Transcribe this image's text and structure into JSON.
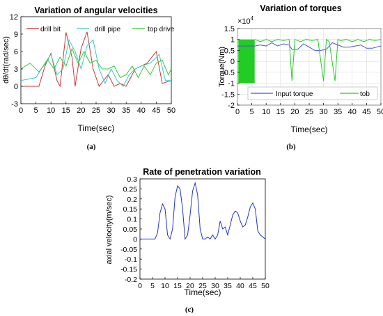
{
  "chart_data": [
    {
      "type": "line",
      "caption": "(a)",
      "title": "Variation of angular velocities",
      "xlabel": "Time(sec)",
      "ylabel": "dθ/dt(rad/sec)",
      "xlim": [
        0,
        50
      ],
      "ylim": [
        -3,
        12
      ],
      "xticks": [
        0,
        5,
        10,
        15,
        20,
        25,
        30,
        35,
        40,
        45,
        50
      ],
      "yticks": [
        -3,
        0,
        3,
        6,
        9,
        12
      ],
      "legend_position": "top",
      "colors": {
        "drill_bit": "#cc3333",
        "drill_pipe": "#33cccc",
        "top_drive": "#33cc33"
      },
      "series": [
        {
          "name": "drill bit",
          "x": [
            0,
            6,
            8,
            10,
            12,
            13,
            15,
            17,
            18,
            20,
            22,
            24,
            26,
            29,
            31,
            33,
            35,
            38,
            42,
            45,
            47,
            50
          ],
          "y": [
            0,
            0,
            3.5,
            5.7,
            1,
            0,
            9.3,
            5,
            0,
            6.5,
            9.4,
            3,
            0,
            2,
            0,
            0.5,
            0,
            3,
            4,
            6,
            0.5,
            1
          ]
        },
        {
          "name": "drill pipe",
          "x": [
            0,
            5,
            8,
            10,
            12,
            14,
            16,
            18,
            20,
            22,
            24,
            26,
            28,
            30,
            32,
            34,
            36,
            38,
            40,
            43,
            46,
            48,
            50
          ],
          "y": [
            1,
            1.5,
            4,
            5.5,
            2,
            3,
            8,
            6,
            3,
            7,
            8,
            3,
            0.5,
            3,
            1,
            0,
            2,
            3,
            3.5,
            4,
            5.5,
            1,
            1
          ]
        },
        {
          "name": "top drive",
          "x": [
            0,
            3,
            6,
            9,
            11,
            13,
            15,
            17,
            19,
            21,
            23,
            25,
            27,
            29,
            31,
            33,
            35,
            37,
            39,
            41,
            43,
            45,
            47,
            49,
            50
          ],
          "y": [
            3,
            4,
            2.5,
            4.5,
            3,
            5,
            3.5,
            6.5,
            4,
            6,
            4,
            4.5,
            3,
            3,
            3.5,
            1.5,
            2,
            3.5,
            1.5,
            3.5,
            2,
            4,
            4.5,
            2,
            3
          ]
        }
      ]
    },
    {
      "type": "line",
      "caption": "(b)",
      "title": "Variation of torques",
      "xlabel": "Time(sec)",
      "ylabel": "Torque(Nm)",
      "scale_label": "×10",
      "scale_exp": "4",
      "xlim": [
        0,
        50
      ],
      "ylim": [
        -2,
        1.5
      ],
      "xticks": [
        0,
        5,
        10,
        15,
        20,
        25,
        30,
        35,
        40,
        45,
        50
      ],
      "yticks": [
        -2,
        -1.5,
        -1,
        -0.5,
        0,
        0.5,
        1,
        1.5
      ],
      "grid": true,
      "legend_position": "bottom",
      "colors": {
        "input": "#4455dd",
        "tob": "#22cc22"
      },
      "series": [
        {
          "name": "Input torque",
          "x": [
            0,
            6,
            8,
            10,
            12,
            14,
            16,
            18,
            19,
            21,
            23,
            25,
            27,
            29,
            31,
            33,
            35,
            37,
            39,
            41,
            43,
            45,
            47,
            50
          ],
          "y": [
            0.7,
            0.7,
            0.75,
            0.7,
            0.85,
            0.7,
            0.8,
            0.75,
            0.55,
            0.55,
            0.8,
            0.65,
            0.5,
            0.5,
            0.55,
            0.85,
            0.75,
            0.65,
            0.65,
            0.7,
            0.75,
            0.6,
            0.6,
            0.7
          ]
        },
        {
          "name": "tob",
          "x": [
            6,
            8,
            10,
            12,
            14,
            16,
            18,
            19,
            20,
            22,
            24,
            26,
            28,
            30,
            31,
            32,
            34,
            35,
            36,
            38,
            40,
            42,
            44,
            46,
            48,
            50
          ],
          "y": [
            1,
            0.9,
            1,
            0.9,
            1,
            0.95,
            1,
            -0.9,
            1,
            0.9,
            1,
            0.95,
            1,
            -0.9,
            1,
            0.9,
            -0.9,
            1,
            0.95,
            1,
            0.9,
            1,
            0.9,
            1,
            0.95,
            1
          ]
        }
      ]
    },
    {
      "type": "line",
      "caption": "(c)",
      "title": "Rate of penetration variation",
      "xlabel": "Time(sec)",
      "ylabel": "axial velocity(m/sec)",
      "xlim": [
        0,
        50
      ],
      "ylim": [
        -0.2,
        0.3
      ],
      "xticks": [
        0,
        5,
        10,
        15,
        20,
        25,
        30,
        35,
        40,
        45,
        50
      ],
      "yticks": [
        -0.2,
        -0.15,
        -0.1,
        -0.05,
        0,
        0.05,
        0.1,
        0.15,
        0.2,
        0.25,
        0.3
      ],
      "colors": {
        "rop": "#2233cc"
      },
      "series": [
        {
          "x": [
            0,
            5,
            6,
            7,
            8,
            9,
            10,
            11,
            12,
            13,
            14,
            15,
            16,
            17,
            18,
            19,
            20,
            21,
            22,
            23,
            24,
            25,
            26,
            27,
            28,
            29,
            30,
            31,
            32,
            33,
            34,
            35,
            36,
            37,
            38,
            39,
            40,
            41,
            42,
            43,
            44,
            45,
            46,
            47,
            48,
            49,
            50
          ],
          "y": [
            0,
            0,
            0,
            0.03,
            0.13,
            0.175,
            0.15,
            0.02,
            0,
            0.05,
            0.21,
            0.265,
            0.25,
            0.15,
            0,
            0.02,
            0.12,
            0.24,
            0.28,
            0.22,
            0.05,
            0,
            0,
            0.01,
            0,
            0.02,
            0,
            0.02,
            0.09,
            0.05,
            0.06,
            0.02,
            0.07,
            0.12,
            0.14,
            0.13,
            0.09,
            0.06,
            0.07,
            0.11,
            0.16,
            0.18,
            0.15,
            0.04,
            0.02,
            0.01,
            0
          ]
        }
      ]
    }
  ]
}
